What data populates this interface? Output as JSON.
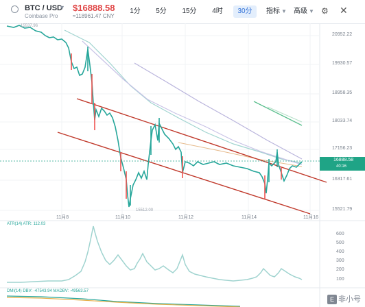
{
  "header": {
    "pair": "BTC / USD",
    "exchange": "Coinbase Pro",
    "price": "$16888.58",
    "price_cny": "≈118961.47 CNY",
    "timeframes": [
      "1分",
      "5分",
      "15分",
      "4时",
      "30分"
    ],
    "active_timeframe": "30分",
    "indicators_label": "指标",
    "advanced_label": "高级"
  },
  "main_chart": {
    "axis_labels": [
      "20952.22",
      "19930.57",
      "18958.35",
      "18033.74",
      "17156.23",
      "16317.61",
      "15521.79"
    ],
    "current_price_tag": "16888.58",
    "countdown_tag": "40:16",
    "low_label": "15512.00",
    "start_label": "15537.96",
    "x_labels": [
      "11月8",
      "11月10",
      "11月12",
      "11月14",
      "11月16"
    ]
  },
  "sub_chart_1": {
    "legend": "ATR(14) ATR: 112.03",
    "axis_labels": [
      "600",
      "500",
      "400",
      "300",
      "200",
      "100"
    ]
  },
  "sub_chart_2": {
    "legend": "DMI(14) DBV: -47543.94 MADBV: -49563.57"
  },
  "watermark": "非小号",
  "colors": {
    "up": "#26a69a",
    "down": "#ef5350",
    "price_tag": "#1fa486",
    "channel": "#c0392b",
    "accent": "#2e6fd6",
    "price_text": "#e04545"
  }
}
